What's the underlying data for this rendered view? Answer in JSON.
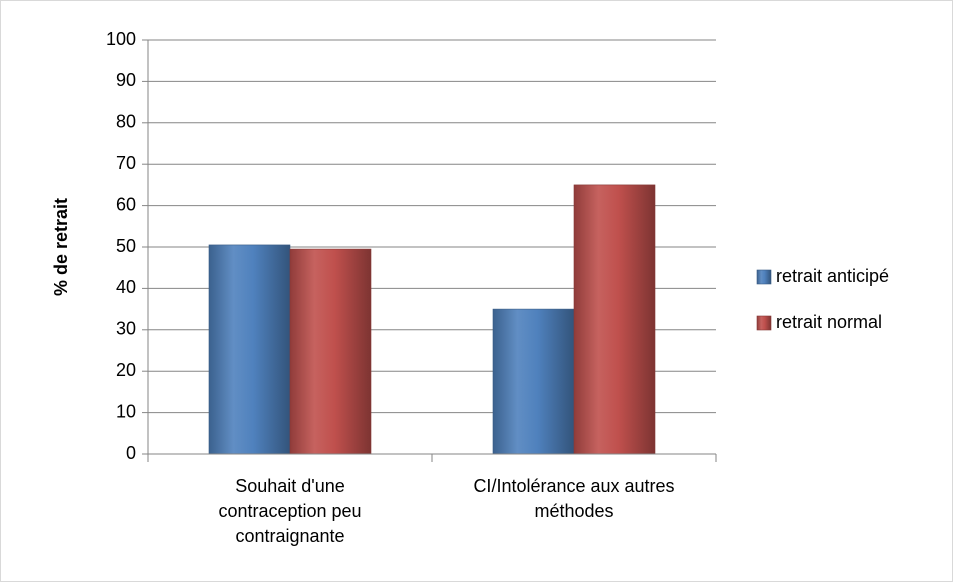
{
  "chart_data": {
    "type": "bar",
    "y_label": "% de retrait",
    "categories": [
      "Souhait d'une contraception peu contraignante",
      "CI/Intolérance aux autres méthodes"
    ],
    "series": [
      {
        "name": "retrait anticipé",
        "color": "#4f81bd",
        "values": [
          50.5,
          35
        ]
      },
      {
        "name": "retrait normal",
        "color": "#c0504d",
        "values": [
          49.5,
          65
        ]
      }
    ],
    "ylim": [
      0,
      100
    ],
    "yticks": [
      0,
      10,
      20,
      30,
      40,
      50,
      60,
      70,
      80,
      90,
      100
    ],
    "grid": true,
    "legend": "right"
  }
}
